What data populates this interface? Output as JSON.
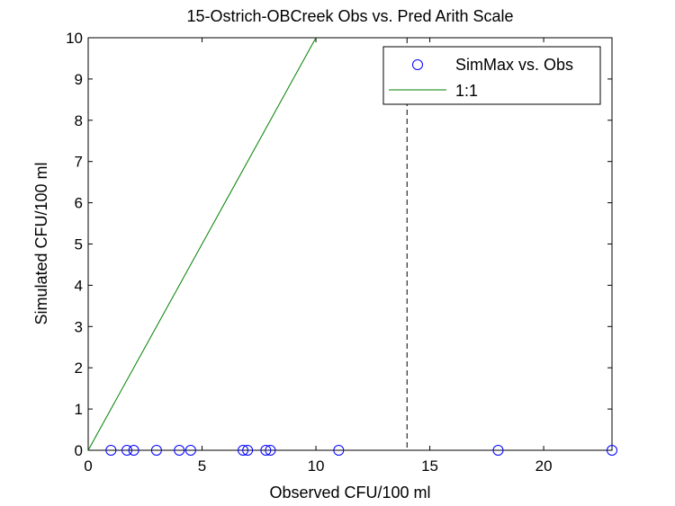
{
  "chart_data": {
    "type": "scatter",
    "title": "15-Ostrich-OBCreek Obs vs. Pred Arith Scale",
    "xlabel": "Observed CFU/100 ml",
    "ylabel": "Simulated CFU/100 ml",
    "xlim": [
      0,
      23
    ],
    "ylim": [
      0,
      10
    ],
    "xticks": [
      0,
      5,
      10,
      15,
      20
    ],
    "yticks": [
      0,
      1,
      2,
      3,
      4,
      5,
      6,
      7,
      8,
      9,
      10
    ],
    "grid": false,
    "legend_position": "top-right",
    "series": [
      {
        "name": "SimMax vs. Obs",
        "kind": "scatter",
        "marker": "open-circle",
        "color": "#0000ff",
        "x": [
          1,
          1.7,
          2,
          3,
          4,
          4.5,
          6.8,
          7,
          7.8,
          8,
          11,
          18,
          23
        ],
        "y": [
          0,
          0,
          0,
          0,
          0,
          0,
          0,
          0,
          0,
          0,
          0,
          0,
          0
        ]
      },
      {
        "name": "1:1",
        "kind": "line",
        "color": "#008000",
        "x": [
          0,
          10
        ],
        "y": [
          0,
          10
        ]
      }
    ],
    "reference_lines": [
      {
        "kind": "vertical-dashed",
        "x": 14,
        "color": "#000000"
      }
    ]
  }
}
